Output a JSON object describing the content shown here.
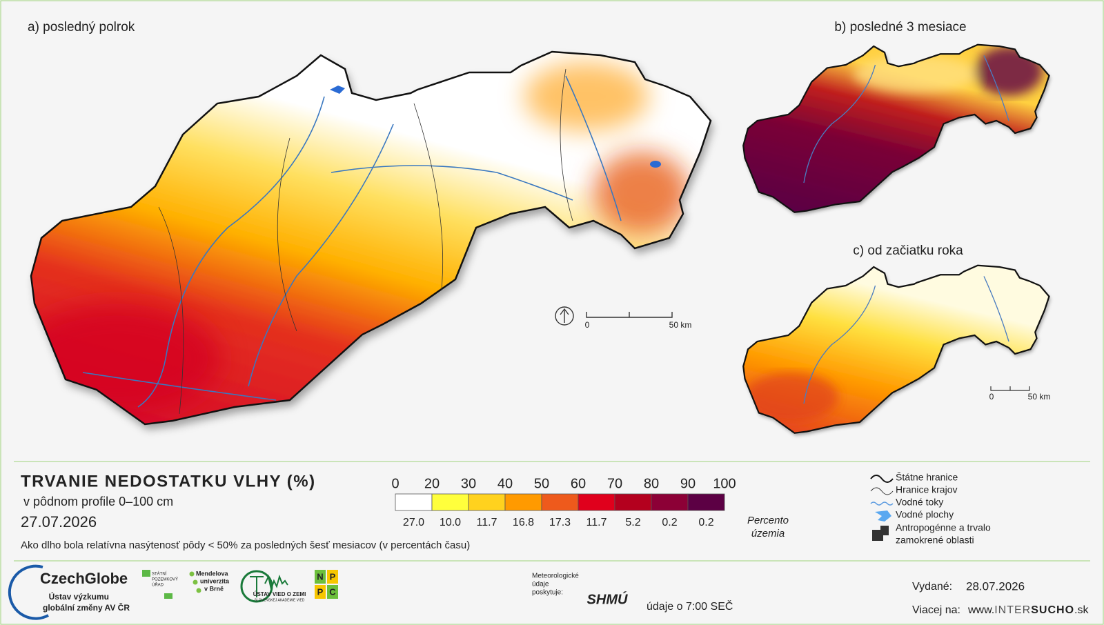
{
  "maps": [
    {
      "label": "a) posledný polrok"
    },
    {
      "label": "b) posledné 3 mesiace"
    },
    {
      "label": "c) od začiatku roka"
    }
  ],
  "scale_bars": [
    {
      "start": "0",
      "end": "50 km"
    },
    {
      "start": "0",
      "end": "50 km"
    }
  ],
  "legend": {
    "title": "TRVANIE NEDOSTATKU VLHY (%)",
    "subtitle": "v pôdnom profile 0–100 cm",
    "date": "27.07.2026",
    "description": "Ako dlho bola relatívna nasýtenosť pôdy < 50% za posledných šesť mesiacov (v percentách času)",
    "ticks": [
      "0",
      "20",
      "30",
      "40",
      "50",
      "60",
      "70",
      "80",
      "90",
      "100"
    ],
    "bins": [
      {
        "color": "#ffffff",
        "share": "27.0"
      },
      {
        "color": "#ffff3c",
        "share": "10.0"
      },
      {
        "color": "#ffd21e",
        "share": "11.7"
      },
      {
        "color": "#ff9a00",
        "share": "16.8"
      },
      {
        "color": "#ee5a1c",
        "share": "17.3"
      },
      {
        "color": "#e0001c",
        "share": "11.7"
      },
      {
        "color": "#b4001e",
        "share": "5.2"
      },
      {
        "color": "#8c0036",
        "share": "0.2"
      },
      {
        "color": "#5c0044",
        "share": "0.2"
      }
    ],
    "share_label": [
      "Percento",
      "územia"
    ]
  },
  "map_legend": [
    "Štátne hranice",
    "Hranice krajov",
    "Vodné toky",
    "Vodné plochy",
    "Antropogénne a trvalo",
    "zamokrené oblasti"
  ],
  "footer": {
    "czechglobe": "CzechGlobe",
    "czechglobe_sub": [
      "Ústav výzkumu",
      "globální změny AV ČR"
    ],
    "spu": [
      "STÁTNÍ",
      "POZEMKOVÝ",
      "ÚŘAD"
    ],
    "mendelu": [
      "Mendelova",
      "univerzita",
      "v Brně"
    ],
    "uvz": "ÚSTAV VIED O ZEMI",
    "uvz_sub": "SLOVENSKEJ AKADÉMIE VIED",
    "nppc": [
      "N",
      "P",
      "P",
      "C"
    ],
    "meteo": [
      "Meteorologické",
      "údaje",
      "poskytuje:"
    ],
    "shmu": "SHMÚ",
    "time": "údaje o 7:00 SEČ",
    "issued_label": "Vydané:",
    "issued": "28.07.2026",
    "more_label": "Viacej na:",
    "url": [
      "www.",
      "INTER",
      "SUCHO",
      ".sk"
    ]
  }
}
